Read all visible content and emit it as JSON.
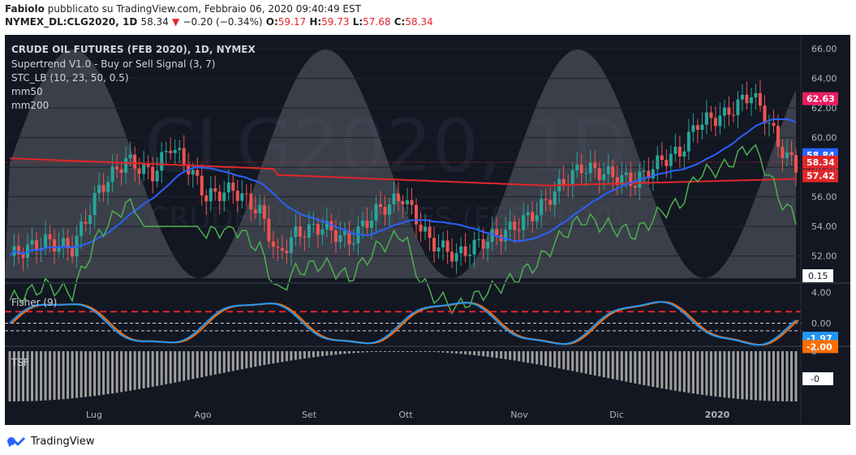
{
  "header": {
    "author": "Fabiolo",
    "published_text": "pubblicato su TradingView.com, Febbraio 06, 2020 09:40:49 EST",
    "symbol": "NYMEX_DL:CLG2020, 1D",
    "last": "58.34",
    "change": "−0.20 (−0.34%)",
    "o_label": "O:",
    "o": "59.17",
    "h_label": "H:",
    "h": "59.73",
    "l_label": "L:",
    "l": "57.68",
    "c_label": "C:",
    "c": "58.34"
  },
  "legend": {
    "title": "CRUDE OIL FUTURES (FEB 2020), 1D, NYMEX",
    "supertrend": "Supertrend V1.0 - Buy or Sell Signal (3, 7)",
    "stc": "STC_LB (10, 23, 50, 0.5)",
    "mm50": "mm50",
    "mm200": "mm200"
  },
  "watermark": {
    "symbol": "CLG2020, 1D",
    "name": "CRUDE OIL FUTURES (FEB 2020)"
  },
  "fisher": {
    "title": "Fisher (9)"
  },
  "tsf": {
    "title": "TSF"
  },
  "footer": {
    "brand": "TradingView"
  },
  "colors": {
    "background": "#131722",
    "up": "#26a69a",
    "down": "#ef5350",
    "mm50": "#2962ff",
    "mm200": "#e0272a",
    "supertrend_up": "#4caf50",
    "supertrend_down": "#e91e63",
    "fisher": "#2196f3",
    "fisher_trigger": "#ff6d00",
    "stc": "#9e9e9e"
  },
  "chart_data": {
    "type": "candlestick",
    "x_ticks": [
      "Lug",
      "Ago",
      "Set",
      "Ott",
      "Nov",
      "Dic",
      "2020"
    ],
    "price_axis": {
      "ticks": [
        "66.00",
        "64.00",
        "62.00",
        "60.00",
        "58.00",
        "56.00",
        "54.00",
        "52.00"
      ],
      "ylim": [
        50.5,
        66.5
      ],
      "labels": [
        {
          "text": "62.63",
          "value": 62.63,
          "color": "#e91e63"
        },
        {
          "text": "58.84",
          "value": 58.84,
          "color": "#2962ff"
        },
        {
          "text": "58.34",
          "value": 58.34,
          "color": "#e0272a"
        },
        {
          "text": "57.42",
          "value": 57.42,
          "color": "#e0272a"
        }
      ],
      "stc_label": "0.15"
    },
    "fisher_axis": {
      "ticks": [
        "4.00",
        "0.00"
      ],
      "ylim": [
        -2.6,
        4.6
      ],
      "levels": [
        1.5,
        0,
        -1
      ],
      "labels": [
        {
          "text": "-1.97",
          "value": -1.97,
          "color": "#2196f3"
        },
        {
          "text": "-2.00",
          "value": -2.0,
          "color": "#ff6d00"
        }
      ]
    },
    "tsf_axis": {
      "ticks": [
        "0"
      ],
      "label": "-0",
      "ylim": [
        -1,
        0
      ]
    }
  }
}
